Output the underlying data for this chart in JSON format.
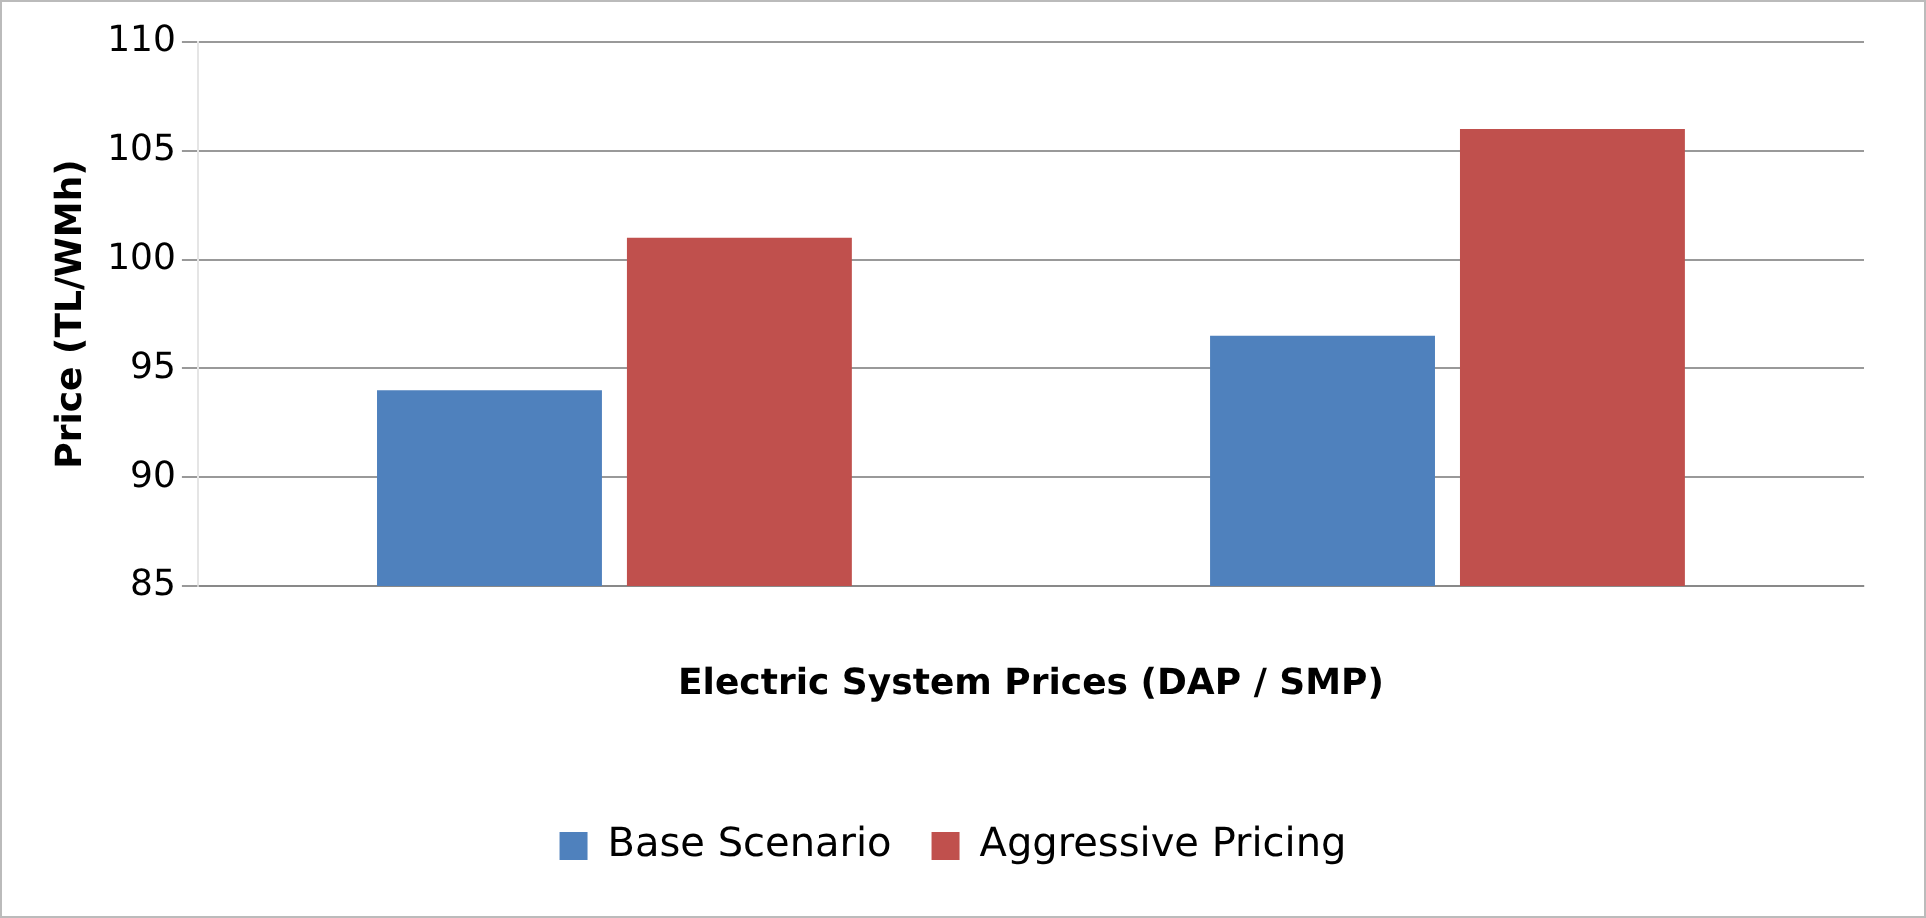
{
  "chart_data": {
    "type": "bar",
    "xlabel": "Electric System Prices (DAP / SMP)",
    "ylabel": "Price (TL/WMh)",
    "categories": [
      null,
      null
    ],
    "series": [
      {
        "name": "Base Scenario",
        "color": "#4f81bd",
        "values": [
          94,
          96.5
        ]
      },
      {
        "name": "Aggressive Pricing",
        "color": "#c0504d",
        "values": [
          101,
          106
        ]
      }
    ],
    "ylim": [
      85,
      110
    ],
    "yticks": [
      85,
      90,
      95,
      100,
      105,
      110
    ],
    "grid": "y",
    "legend": "bottom"
  }
}
